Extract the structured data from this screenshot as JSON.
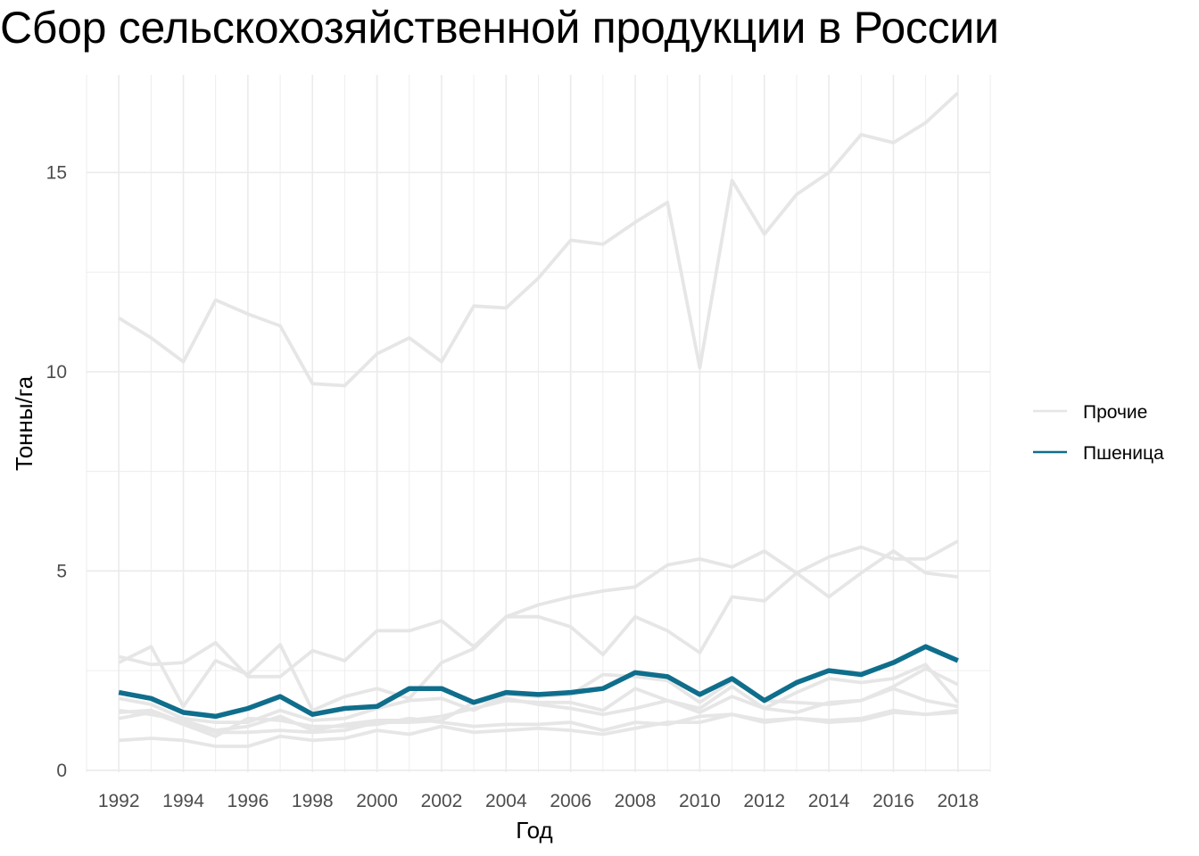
{
  "chart_data": {
    "type": "line",
    "title": "Сбор сельскохозяйственной продукции в России",
    "xlabel": "Год",
    "ylabel": "Тонны/га",
    "x": [
      1992,
      1993,
      1994,
      1995,
      1996,
      1997,
      1998,
      1999,
      2000,
      2001,
      2002,
      2003,
      2004,
      2005,
      2006,
      2007,
      2008,
      2009,
      2010,
      2011,
      2012,
      2013,
      2014,
      2015,
      2016,
      2017,
      2018
    ],
    "xticks": [
      "1992",
      "1994",
      "1996",
      "1998",
      "2000",
      "2002",
      "2004",
      "2006",
      "2008",
      "2010",
      "2012",
      "2014",
      "2016",
      "2018"
    ],
    "yticks": [
      "0",
      "5",
      "10",
      "15"
    ],
    "xlim": [
      1991,
      2019
    ],
    "ylim": [
      -0.05,
      17.45
    ],
    "grid": true,
    "legend_position": "right",
    "legend": [
      {
        "name": "Прочие",
        "color": "#e6e6e6"
      },
      {
        "name": "Пшеница",
        "color": "#0f6e8c"
      }
    ],
    "series": [
      {
        "group": "Прочие",
        "values": [
          11.35,
          10.85,
          10.25,
          11.8,
          11.45,
          11.15,
          9.7,
          9.65,
          10.45,
          10.85,
          10.25,
          11.65,
          11.6,
          12.35,
          13.3,
          13.2,
          13.75,
          14.25,
          10.1,
          14.8,
          13.45,
          14.45,
          15.0,
          15.95,
          15.75,
          16.25,
          17.0
        ]
      },
      {
        "group": "Прочие",
        "values": [
          2.7,
          3.1,
          1.6,
          2.75,
          2.4,
          3.15,
          1.5,
          1.85,
          2.05,
          1.8,
          2.7,
          3.05,
          3.85,
          3.85,
          3.6,
          2.9,
          3.85,
          3.5,
          2.95,
          4.35,
          4.25,
          4.95,
          4.35,
          4.95,
          5.5,
          4.95,
          4.85
        ]
      },
      {
        "group": "Прочие",
        "values": [
          2.85,
          2.65,
          2.7,
          3.2,
          2.35,
          2.35,
          3.0,
          2.75,
          3.5,
          3.5,
          3.75,
          3.1,
          3.85,
          4.15,
          4.35,
          4.5,
          4.6,
          5.15,
          5.3,
          5.1,
          5.5,
          4.95,
          5.35,
          5.6,
          5.3,
          5.3,
          5.75
        ]
      },
      {
        "group": "Прочие",
        "values": [
          1.8,
          1.65,
          1.3,
          1.2,
          1.2,
          1.5,
          1.25,
          1.3,
          1.55,
          1.75,
          1.8,
          1.5,
          1.9,
          1.85,
          1.9,
          2.4,
          2.35,
          2.25,
          1.7,
          2.25,
          1.75,
          1.7,
          1.65,
          1.75,
          2.1,
          2.55,
          2.15
        ]
      },
      {
        "group": "Прочие",
        "values": [
          1.5,
          1.4,
          1.25,
          1.0,
          1.1,
          1.35,
          1.0,
          1.15,
          1.25,
          1.25,
          1.35,
          1.55,
          1.75,
          1.7,
          1.7,
          1.5,
          2.05,
          1.75,
          1.55,
          2.1,
          1.55,
          1.95,
          2.3,
          2.2,
          2.3,
          2.65,
          1.7
        ]
      },
      {
        "group": "Прочие",
        "values": [
          1.3,
          1.45,
          1.15,
          0.85,
          1.3,
          1.25,
          1.1,
          1.1,
          1.15,
          1.3,
          1.2,
          1.1,
          1.15,
          1.15,
          1.2,
          1.0,
          1.2,
          1.15,
          1.35,
          1.4,
          1.25,
          1.3,
          1.25,
          1.3,
          1.5,
          1.4,
          1.5
        ]
      },
      {
        "group": "Прочие",
        "values": [
          1.45,
          1.5,
          1.2,
          0.95,
          0.95,
          1.0,
          0.95,
          1.0,
          1.2,
          1.2,
          1.25,
          1.7,
          1.8,
          1.65,
          1.55,
          1.4,
          1.55,
          1.75,
          1.45,
          1.85,
          1.55,
          1.45,
          1.7,
          1.75,
          2.05,
          1.75,
          1.6
        ]
      },
      {
        "group": "Прочие",
        "values": [
          0.75,
          0.8,
          0.75,
          0.6,
          0.6,
          0.85,
          0.75,
          0.8,
          1.0,
          0.9,
          1.1,
          0.95,
          1.0,
          1.05,
          1.0,
          0.9,
          1.05,
          1.2,
          1.2,
          1.4,
          1.2,
          1.3,
          1.2,
          1.25,
          1.45,
          1.4,
          1.45
        ]
      },
      {
        "group": "Пшеница",
        "values": [
          1.95,
          1.8,
          1.45,
          1.35,
          1.55,
          1.85,
          1.4,
          1.55,
          1.6,
          2.05,
          2.05,
          1.7,
          1.95,
          1.9,
          1.95,
          2.05,
          2.45,
          2.35,
          1.9,
          2.3,
          1.75,
          2.2,
          2.5,
          2.4,
          2.7,
          3.1,
          2.75
        ]
      }
    ]
  }
}
